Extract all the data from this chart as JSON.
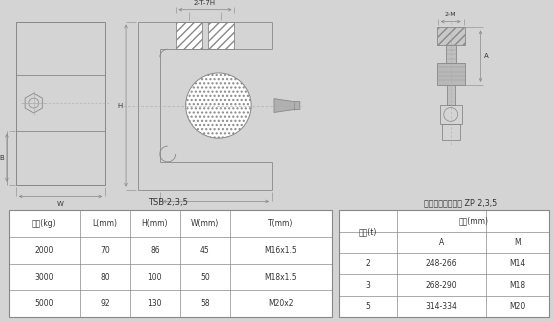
{
  "bg_color": "#d4d4d4",
  "title1": "TSB 2,3,5",
  "title2": "关节轴承式连接件 ZP 2,3,5",
  "table1_headers": [
    "容量(kg)",
    "L(mm)",
    "H(mm)",
    "W(mm)",
    "T(mm)"
  ],
  "table1_rows": [
    [
      "2000",
      "70",
      "86",
      "45",
      "M16x1.5"
    ],
    [
      "3000",
      "80",
      "100",
      "50",
      "M18x1.5"
    ],
    [
      "5000",
      "92",
      "130",
      "58",
      "M20x2"
    ]
  ],
  "table2_header1": "容量(t)",
  "table2_header2": "尺寸(mm)",
  "table2_sub_headers": [
    "A",
    "M"
  ],
  "table2_rows": [
    [
      "2",
      "248-266",
      "M14"
    ],
    [
      "3",
      "268-290",
      "M18"
    ],
    [
      "5",
      "314-334",
      "M20"
    ]
  ],
  "line_color": "#888888",
  "text_color": "#333333"
}
